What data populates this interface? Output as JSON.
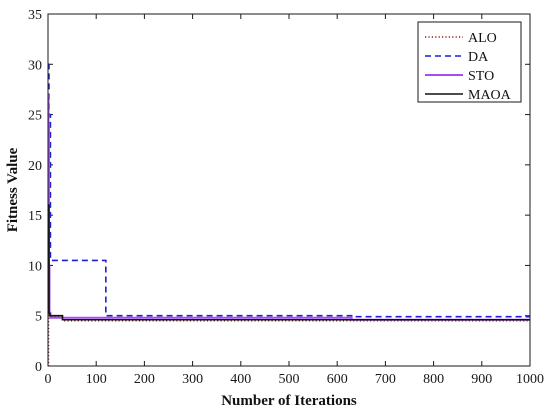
{
  "chart_data": {
    "type": "line",
    "title": "",
    "xlabel": "Number of Iterations",
    "ylabel": "Fitness Value",
    "xlim": [
      0,
      1000
    ],
    "ylim": [
      0,
      35
    ],
    "xticks": [
      0,
      100,
      200,
      300,
      400,
      500,
      600,
      700,
      800,
      900,
      1000
    ],
    "yticks": [
      0,
      5,
      10,
      15,
      20,
      25,
      30,
      35
    ],
    "grid": false,
    "legend_position": "top-right",
    "series": [
      {
        "name": "ALO",
        "color": "#8b1a1a",
        "style": "dotted",
        "x": [
          0,
          1,
          1,
          3,
          3,
          30,
          30,
          1000
        ],
        "y": [
          0,
          0,
          5.0,
          5.0,
          4.9,
          4.9,
          4.5,
          4.5
        ]
      },
      {
        "name": "DA",
        "color": "#1f1fd0",
        "style": "dashed",
        "x": [
          0,
          2,
          2,
          5,
          5,
          120,
          120,
          630,
          630,
          1000
        ],
        "y": [
          30.0,
          30.0,
          25.0,
          25.0,
          10.5,
          10.5,
          5.0,
          5.0,
          4.9,
          4.9
        ]
      },
      {
        "name": "STO",
        "color": "#a64cf0",
        "style": "solid",
        "x": [
          0,
          1,
          1,
          2,
          2,
          3,
          3,
          5,
          5,
          630,
          630,
          1000
        ],
        "y": [
          27.0,
          27.0,
          24.0,
          24.0,
          10.0,
          10.0,
          5.3,
          5.3,
          4.8,
          4.8,
          4.6,
          4.6
        ]
      },
      {
        "name": "MAOA",
        "color": "#111111",
        "style": "solid",
        "x": [
          0,
          2,
          2,
          4,
          4,
          30,
          30,
          1000
        ],
        "y": [
          16.0,
          16.0,
          5.2,
          5.2,
          5.0,
          5.0,
          4.6,
          4.6
        ]
      }
    ]
  }
}
